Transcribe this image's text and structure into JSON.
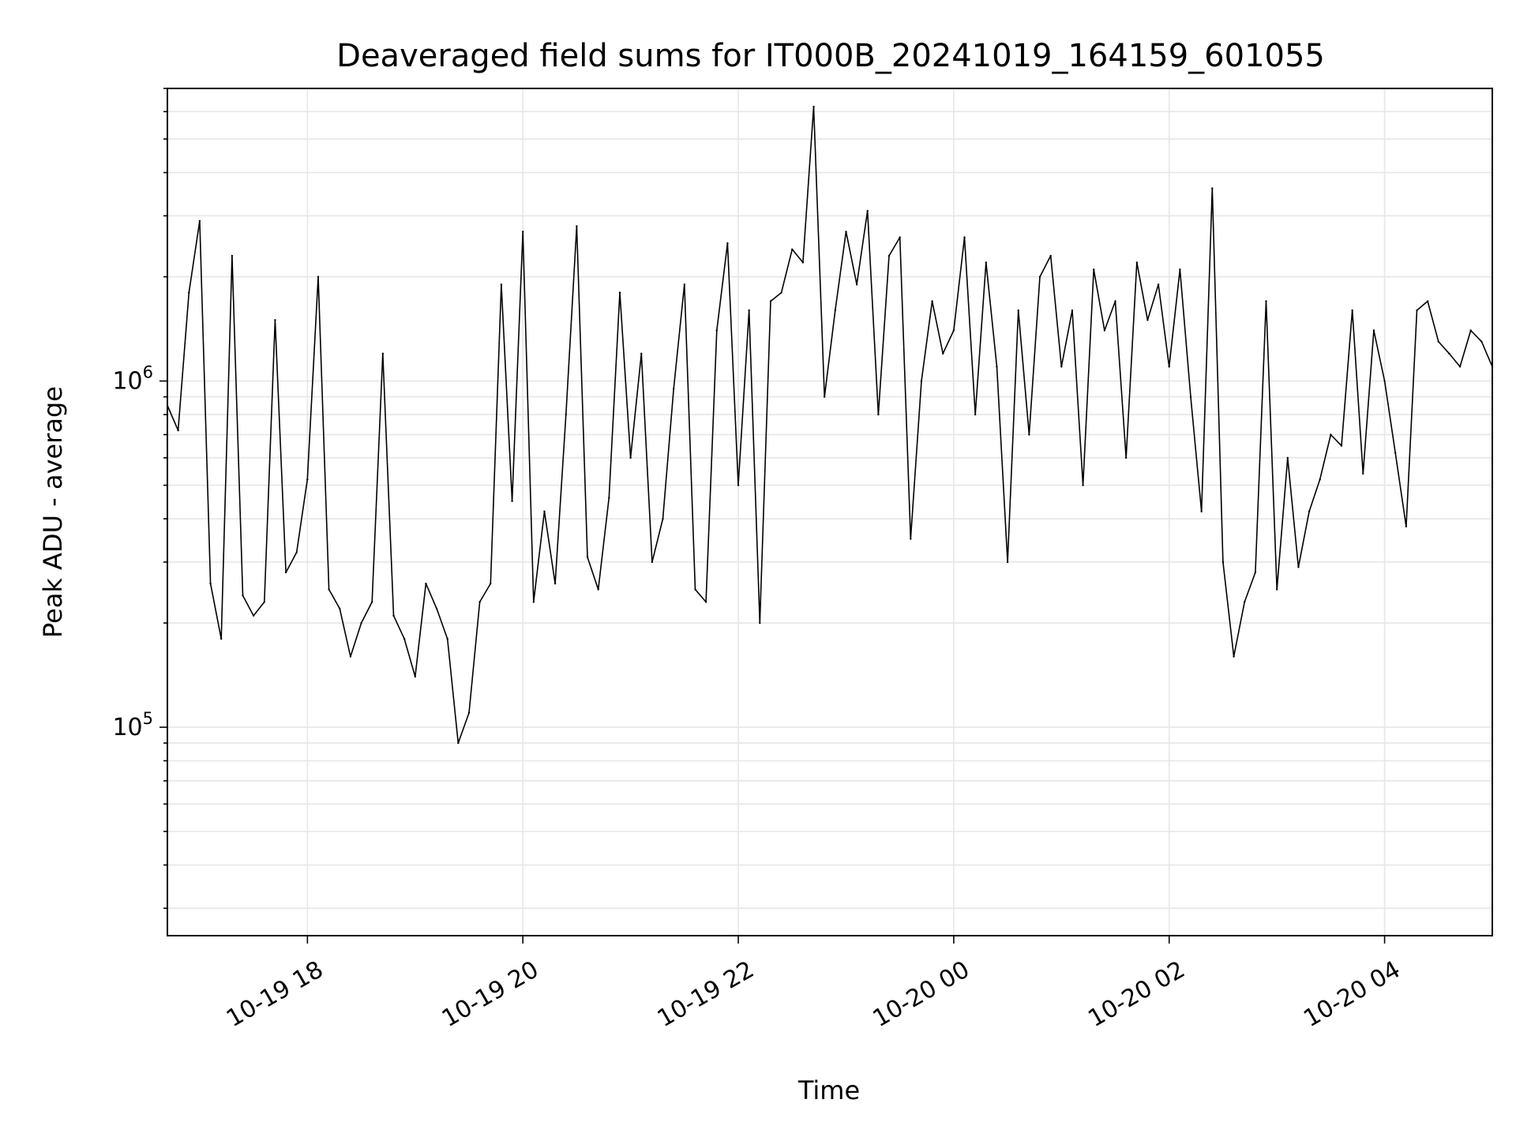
{
  "chart_data": {
    "type": "line",
    "title": "Deaveraged field sums for IT000B_20241019_164159_601055",
    "xlabel": "Time",
    "ylabel": "Peak ADU - average",
    "yscale": "log",
    "ylim": [
      25000,
      7000000
    ],
    "xlim": [
      "2024-10-19 16:42",
      "2024-10-20 05:00"
    ],
    "grid": "both (major and minor, light gray)",
    "line_color": "#000000",
    "x_ticks": [
      {
        "t": "2024-10-19 18:00",
        "label": "10-19 18"
      },
      {
        "t": "2024-10-19 20:00",
        "label": "10-19 20"
      },
      {
        "t": "2024-10-19 22:00",
        "label": "10-19 22"
      },
      {
        "t": "2024-10-20 00:00",
        "label": "10-20 00"
      },
      {
        "t": "2024-10-20 02:00",
        "label": "10-20 02"
      },
      {
        "t": "2024-10-20 04:00",
        "label": "10-20 04"
      }
    ],
    "y_ticks": [
      {
        "value": 100000,
        "base": "10",
        "exp": "5"
      },
      {
        "value": 1000000,
        "base": "10",
        "exp": "6"
      }
    ],
    "series": [
      {
        "x": [
          "2024-10-19 16:42",
          "2024-10-19 16:48",
          "2024-10-19 16:54",
          "2024-10-19 17:00",
          "2024-10-19 17:06",
          "2024-10-19 17:12",
          "2024-10-19 17:18",
          "2024-10-19 17:24",
          "2024-10-19 17:30",
          "2024-10-19 17:36",
          "2024-10-19 17:42",
          "2024-10-19 17:48",
          "2024-10-19 17:54",
          "2024-10-19 18:00",
          "2024-10-19 18:06",
          "2024-10-19 18:12",
          "2024-10-19 18:18",
          "2024-10-19 18:24",
          "2024-10-19 18:30",
          "2024-10-19 18:36",
          "2024-10-19 18:42",
          "2024-10-19 18:48",
          "2024-10-19 18:54",
          "2024-10-19 19:00",
          "2024-10-19 19:06",
          "2024-10-19 19:12",
          "2024-10-19 19:18",
          "2024-10-19 19:24",
          "2024-10-19 19:30",
          "2024-10-19 19:36",
          "2024-10-19 19:42",
          "2024-10-19 19:48",
          "2024-10-19 19:54",
          "2024-10-19 20:00",
          "2024-10-19 20:06",
          "2024-10-19 20:12",
          "2024-10-19 20:18",
          "2024-10-19 20:24",
          "2024-10-19 20:30",
          "2024-10-19 20:36",
          "2024-10-19 20:42",
          "2024-10-19 20:48",
          "2024-10-19 20:54",
          "2024-10-19 21:00",
          "2024-10-19 21:06",
          "2024-10-19 21:12",
          "2024-10-19 21:18",
          "2024-10-19 21:24",
          "2024-10-19 21:30",
          "2024-10-19 21:36",
          "2024-10-19 21:42",
          "2024-10-19 21:48",
          "2024-10-19 21:54",
          "2024-10-19 22:00",
          "2024-10-19 22:06",
          "2024-10-19 22:12",
          "2024-10-19 22:18",
          "2024-10-19 22:24",
          "2024-10-19 22:30",
          "2024-10-19 22:36",
          "2024-10-19 22:42",
          "2024-10-19 22:48",
          "2024-10-19 22:54",
          "2024-10-19 23:00",
          "2024-10-19 23:06",
          "2024-10-19 23:12",
          "2024-10-19 23:18",
          "2024-10-19 23:24",
          "2024-10-19 23:30",
          "2024-10-19 23:36",
          "2024-10-19 23:42",
          "2024-10-19 23:48",
          "2024-10-19 23:54",
          "2024-10-20 00:00",
          "2024-10-20 00:06",
          "2024-10-20 00:12",
          "2024-10-20 00:18",
          "2024-10-20 00:24",
          "2024-10-20 00:30",
          "2024-10-20 00:36",
          "2024-10-20 00:42",
          "2024-10-20 00:48",
          "2024-10-20 00:54",
          "2024-10-20 01:00",
          "2024-10-20 01:06",
          "2024-10-20 01:12",
          "2024-10-20 01:18",
          "2024-10-20 01:24",
          "2024-10-20 01:30",
          "2024-10-20 01:36",
          "2024-10-20 01:42",
          "2024-10-20 01:48",
          "2024-10-20 01:54",
          "2024-10-20 02:00",
          "2024-10-20 02:06",
          "2024-10-20 02:12",
          "2024-10-20 02:18",
          "2024-10-20 02:24",
          "2024-10-20 02:30",
          "2024-10-20 02:36",
          "2024-10-20 02:42",
          "2024-10-20 02:48",
          "2024-10-20 02:54",
          "2024-10-20 03:00",
          "2024-10-20 03:06",
          "2024-10-20 03:12",
          "2024-10-20 03:18",
          "2024-10-20 03:24",
          "2024-10-20 03:30",
          "2024-10-20 03:36",
          "2024-10-20 03:42",
          "2024-10-20 03:48",
          "2024-10-20 03:54",
          "2024-10-20 04:00",
          "2024-10-20 04:06",
          "2024-10-20 04:12",
          "2024-10-20 04:18",
          "2024-10-20 04:24",
          "2024-10-20 04:30",
          "2024-10-20 04:36",
          "2024-10-20 04:42",
          "2024-10-20 04:48",
          "2024-10-20 04:54",
          "2024-10-20 05:00"
        ],
        "y": [
          850000,
          720000,
          1800000,
          2900000,
          260000,
          180000,
          2300000,
          240000,
          210000,
          230000,
          1500000,
          280000,
          320000,
          520000,
          2000000,
          250000,
          220000,
          160000,
          200000,
          230000,
          1200000,
          210000,
          180000,
          140000,
          260000,
          220000,
          180000,
          90000,
          110000,
          230000,
          260000,
          1900000,
          450000,
          2700000,
          230000,
          420000,
          260000,
          800000,
          2800000,
          310000,
          250000,
          460000,
          1800000,
          600000,
          1200000,
          300000,
          400000,
          950000,
          1900000,
          250000,
          230000,
          1400000,
          2500000,
          500000,
          1600000,
          200000,
          1700000,
          1800000,
          2400000,
          2200000,
          6200000,
          900000,
          1600000,
          2700000,
          1900000,
          3100000,
          800000,
          2300000,
          2600000,
          350000,
          1000000,
          1700000,
          1200000,
          1400000,
          2600000,
          800000,
          2200000,
          1100000,
          300000,
          1600000,
          700000,
          2000000,
          2300000,
          1100000,
          1600000,
          500000,
          2100000,
          1400000,
          1700000,
          600000,
          2200000,
          1500000,
          1900000,
          1100000,
          2100000,
          900000,
          420000,
          3600000,
          300000,
          160000,
          230000,
          280000,
          1700000,
          250000,
          600000,
          290000,
          420000,
          520000,
          700000,
          650000,
          1600000,
          540000,
          1400000,
          1000000,
          620000,
          380000,
          1600000,
          1700000,
          1300000,
          1200000,
          1100000,
          1400000,
          1300000,
          1100000
        ]
      }
    ]
  }
}
